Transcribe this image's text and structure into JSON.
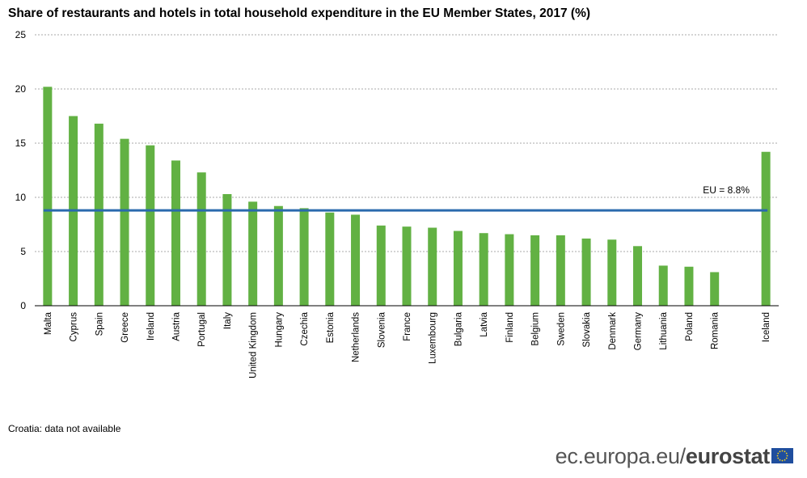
{
  "chart_data": {
    "type": "bar",
    "title": "Share of restaurants and hotels in total household expenditure in the EU Member States, 2017 (%)",
    "xlabel": "",
    "ylabel": "",
    "ylim": [
      0,
      25
    ],
    "yticks": [
      0,
      5,
      10,
      15,
      20,
      25
    ],
    "grid": true,
    "categories": [
      "Malta",
      "Cyprus",
      "Spain",
      "Greece",
      "Ireland",
      "Austria",
      "Portugal",
      "Italy",
      "United Kingdom",
      "Hungary",
      "Czechia",
      "Estonia",
      "Netherlands",
      "Slovenia",
      "France",
      "Luxembourg",
      "Bulgaria",
      "Latvia",
      "Finland",
      "Belgium",
      "Sweden",
      "Slovakia",
      "Denmark",
      "Germany",
      "Lithuania",
      "Poland",
      "Romania",
      "",
      "Iceland"
    ],
    "values": [
      20.2,
      17.5,
      16.8,
      15.4,
      14.8,
      13.4,
      12.3,
      10.3,
      9.6,
      9.2,
      9.0,
      8.6,
      8.4,
      7.4,
      7.3,
      7.2,
      6.9,
      6.7,
      6.6,
      6.5,
      6.5,
      6.2,
      6.1,
      5.5,
      3.7,
      3.6,
      3.1,
      null,
      14.2
    ],
    "reference_line": {
      "label": "EU = 8.8%",
      "value": 8.8
    },
    "colors": {
      "bar": "#62b143",
      "reference_line": "#2a6aad",
      "grid": "#aaaaaa"
    }
  },
  "footnote": "Croatia: data not available",
  "brand": {
    "domain": "ec.europa.eu/",
    "name": "eurostat"
  }
}
